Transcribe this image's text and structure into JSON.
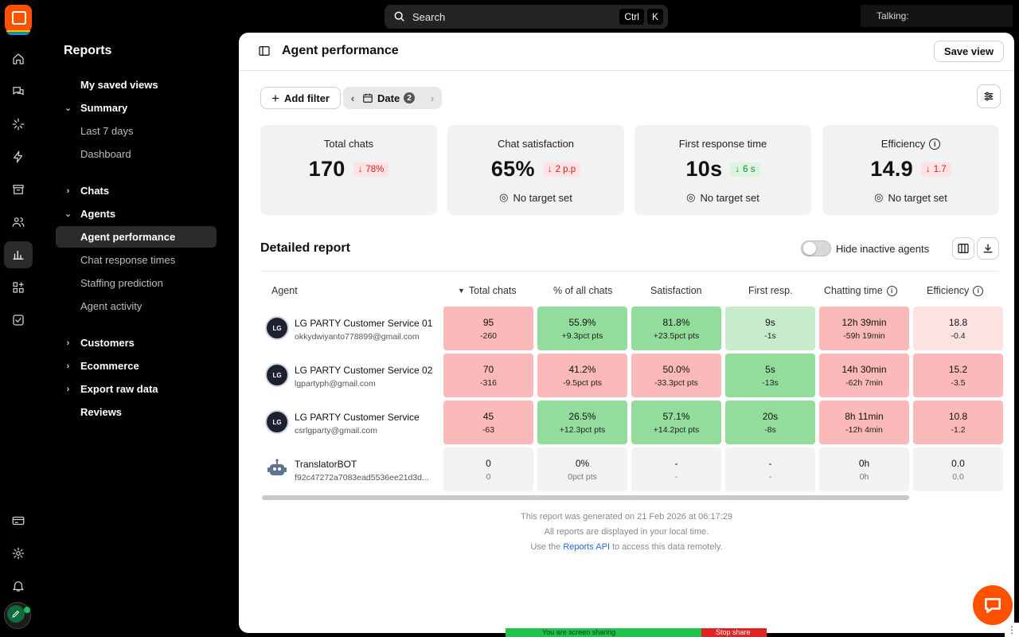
{
  "topbar": {
    "search_placeholder": "Search",
    "shortcut_key1": "Ctrl",
    "shortcut_key2": "K",
    "talking_label": "Talking:"
  },
  "sidebar": {
    "title": "Reports",
    "items": [
      {
        "label": "My saved views"
      },
      {
        "label": "Summary"
      },
      {
        "label": "Last 7 days"
      },
      {
        "label": "Dashboard"
      },
      {
        "label": "Chats"
      },
      {
        "label": "Agents"
      },
      {
        "label": "Agent performance"
      },
      {
        "label": "Chat response times"
      },
      {
        "label": "Staffing prediction"
      },
      {
        "label": "Agent activity"
      },
      {
        "label": "Customers"
      },
      {
        "label": "Ecommerce"
      },
      {
        "label": "Export raw data"
      },
      {
        "label": "Reviews"
      }
    ]
  },
  "header": {
    "title": "Agent performance",
    "save_view": "Save view"
  },
  "filters": {
    "add_filter": "Add filter",
    "date_label": "Date",
    "date_count": "2"
  },
  "metrics": [
    {
      "label": "Total chats",
      "value": "170",
      "delta": "78%",
      "target": ""
    },
    {
      "label": "Chat satisfaction",
      "value": "65%",
      "delta": "2 p.p",
      "target": "No target set"
    },
    {
      "label": "First response time",
      "value": "10s",
      "delta": "6 s",
      "target": "No target set"
    },
    {
      "label": "Efficiency",
      "value": "14.9",
      "delta": "1.7",
      "target": "No target set"
    }
  ],
  "detailed": {
    "title": "Detailed report",
    "hide_inactive": "Hide inactive agents",
    "columns": [
      "Agent",
      "Total chats",
      "% of all chats",
      "Satisfaction",
      "First resp.",
      "Chatting time",
      "Efficiency"
    ],
    "rows": [
      {
        "name": "LG PARTY Customer Service 01",
        "email": "okkydwiyanto778899@gmail.com",
        "cells": [
          {
            "v": "95",
            "d": "-260"
          },
          {
            "v": "55.9%",
            "d": "+9.3pct pts"
          },
          {
            "v": "81.8%",
            "d": "+23.5pct pts"
          },
          {
            "v": "9s",
            "d": "-1s"
          },
          {
            "v": "12h 39min",
            "d": "-59h 19min"
          },
          {
            "v": "18.8",
            "d": "-0.4"
          }
        ]
      },
      {
        "name": "LG PARTY Customer Service 02",
        "email": "lgpartyph@gmail.com",
        "cells": [
          {
            "v": "70",
            "d": "-316"
          },
          {
            "v": "41.2%",
            "d": "-9.5pct pts"
          },
          {
            "v": "50.0%",
            "d": "-33.3pct pts"
          },
          {
            "v": "5s",
            "d": "-13s"
          },
          {
            "v": "14h 30min",
            "d": "-62h 7min"
          },
          {
            "v": "15.2",
            "d": "-3.5"
          }
        ]
      },
      {
        "name": "LG PARTY Customer Service",
        "email": "csrlgparty@gmail.com",
        "cells": [
          {
            "v": "45",
            "d": "-63"
          },
          {
            "v": "26.5%",
            "d": "+12.3pct pts"
          },
          {
            "v": "57.1%",
            "d": "+14.2pct pts"
          },
          {
            "v": "20s",
            "d": "-8s"
          },
          {
            "v": "8h 11min",
            "d": "-12h 4min"
          },
          {
            "v": "10.8",
            "d": "-1.2"
          }
        ]
      },
      {
        "name": "TranslatorBOT",
        "email": "f92c47272a7083ead5536ee21d3d...",
        "cells": [
          {
            "v": "0",
            "d": "0"
          },
          {
            "v": "0%",
            "d": "0pct pts"
          },
          {
            "v": "-",
            "d": "-"
          },
          {
            "v": "-",
            "d": "-"
          },
          {
            "v": "0h",
            "d": "0h"
          },
          {
            "v": "0.0",
            "d": "0.0"
          }
        ]
      }
    ]
  },
  "footer": {
    "line1": "This report was generated on 21 Feb 2026 at 06:17:29",
    "line2": "All reports are displayed in your local time.",
    "line3_pre": "Use the",
    "line3_link": "Reports API",
    "line3_post": "to access this data remotely."
  },
  "screenshare": {
    "message": "You are screen sharing",
    "stop": "Stop share"
  },
  "colors": {
    "brand": "#ff5100",
    "bad": "#fcb9b9",
    "good": "#93dd9c",
    "neutral": "#f2f2f2"
  }
}
